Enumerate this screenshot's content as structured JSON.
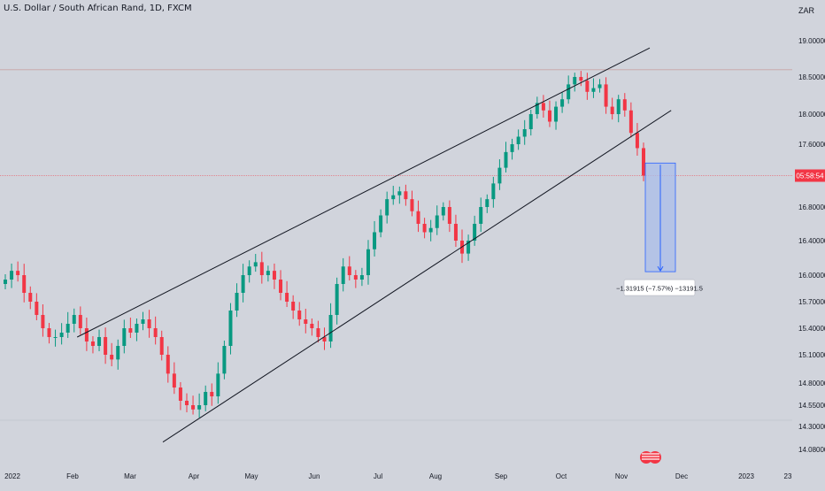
{
  "header": {
    "symbol_title": "U.S. Dollar / South African Rand, 1D, FXCM",
    "currency": "ZAR"
  },
  "price_tag": "05:58:54",
  "measure_label": "−1.31915 (−7.57%) −13191.5",
  "colors": {
    "background": "#d1d4dc",
    "up": "#089981",
    "down": "#f23645",
    "trendline": "#131722",
    "price_line": "#f23645",
    "measure_fill": "#a9bde9",
    "measure_stroke": "#2962ff",
    "axis_text": "#131722",
    "grid": "#c2c5cc"
  },
  "chart_data": {
    "type": "candlestick",
    "x_ticks": [
      "2022",
      "Feb",
      "Mar",
      "Apr",
      "May",
      "Jun",
      "Jul",
      "Aug",
      "Sep",
      "Oct",
      "Nov",
      "Dec",
      "2023",
      "23"
    ],
    "y_ticks": [
      "19.00000",
      "18.50000",
      "18.00000",
      "17.60000",
      "16.80000",
      "16.40000",
      "16.00000",
      "15.70000",
      "15.40000",
      "15.10000",
      "14.80000",
      "14.55000",
      "14.30000",
      "14.08000"
    ],
    "y_scale": "log",
    "grid": false,
    "closes": [
      15.95,
      16.05,
      16.0,
      15.8,
      15.7,
      15.55,
      15.4,
      15.3,
      15.3,
      15.35,
      15.45,
      15.55,
      15.4,
      15.25,
      15.2,
      15.3,
      15.1,
      15.05,
      15.2,
      15.4,
      15.35,
      15.45,
      15.5,
      15.4,
      15.3,
      15.1,
      14.9,
      14.75,
      14.6,
      14.55,
      14.5,
      14.55,
      14.7,
      14.65,
      14.9,
      15.2,
      15.6,
      15.8,
      16.0,
      16.1,
      16.15,
      16.0,
      16.05,
      15.95,
      15.8,
      15.7,
      15.6,
      15.5,
      15.45,
      15.4,
      15.3,
      15.25,
      15.55,
      15.9,
      16.1,
      16.0,
      15.95,
      16.0,
      16.3,
      16.5,
      16.7,
      16.9,
      16.95,
      17.0,
      16.9,
      16.75,
      16.6,
      16.5,
      16.55,
      16.7,
      16.8,
      16.6,
      16.4,
      16.25,
      16.4,
      16.6,
      16.8,
      16.9,
      17.1,
      17.3,
      17.5,
      17.6,
      17.7,
      17.8,
      18.0,
      18.15,
      18.05,
      17.9,
      18.1,
      18.2,
      18.4,
      18.5,
      18.45,
      18.3,
      18.35,
      18.4,
      18.1,
      18.0,
      18.2,
      18.05,
      17.75,
      17.55,
      17.2
    ],
    "price_lines": [
      18.6,
      17.2
    ],
    "trend_channel": {
      "upper": [
        {
          "x": "2022-02-06",
          "y": 15.3
        },
        {
          "x": "2022-11-27",
          "y": 18.9
        }
      ],
      "lower": [
        {
          "x": "2022-03-22",
          "y": 14.15
        },
        {
          "x": "2022-12-08",
          "y": 18.05
        }
      ]
    },
    "measure": {
      "from": 17.36,
      "to": 16.04,
      "change": -1.31915,
      "percent": -7.57,
      "ticks": -13191.5
    }
  }
}
